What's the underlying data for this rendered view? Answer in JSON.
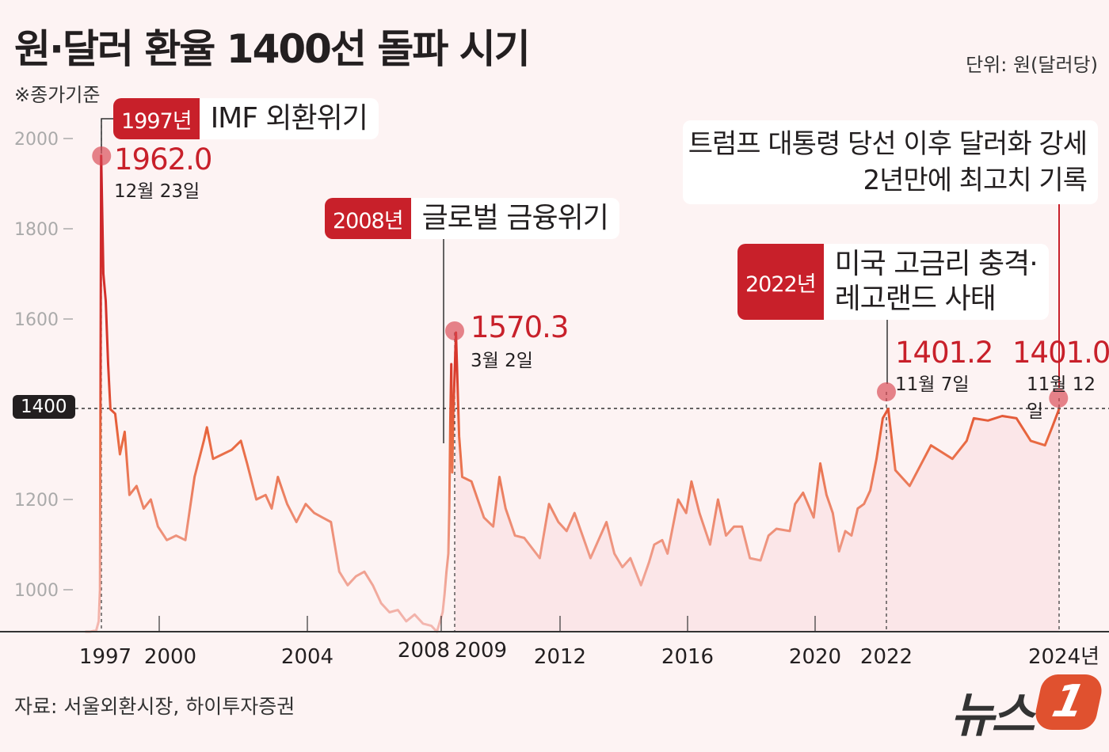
{
  "title": "원·달러 환율 1400선 돌파 시기",
  "unit": "단위: 원(달러당)",
  "note": "※종가기준",
  "source": "자료: 서울외환시장, 하이투자증권",
  "logo": {
    "text": "뉴스",
    "mark": "1"
  },
  "reference_line": {
    "value": 1400,
    "label": "1400"
  },
  "colors": {
    "accent": "#c8202a",
    "line_high": "#c8202a",
    "line_mid": "#e8673e",
    "line_low": "#f3b7b0",
    "background": "#fdf3f3",
    "fill": "#fbe6e8"
  },
  "annotations": [
    {
      "year": "1997년",
      "text": "IMF 외환위기",
      "value": "1962.0",
      "date": "12월 23일"
    },
    {
      "year": "2008년",
      "text": "글로벌 금융위기",
      "value": "1570.3",
      "date": "3월 2일"
    },
    {
      "year": "2022년",
      "text": "미국 고금리 충격·",
      "text2": "레고랜드 사태",
      "value": "1401.2",
      "date": "11월 7일"
    },
    {
      "text": "트럼프 대통령 당선 이후 달러화 강세",
      "text2": "2년만에 최고치 기록",
      "value": "1401.0",
      "date": "11월 12일"
    }
  ],
  "chart_data": {
    "type": "line",
    "title": "원·달러 환율 1400선 돌파 시기",
    "ylabel": "단위: 원(달러당)",
    "ylim": [
      900,
      2050
    ],
    "yticks": [
      "2000",
      "1800",
      "1600",
      "1400",
      "1200",
      "1000"
    ],
    "xticks": [
      "1997",
      "2000",
      "2004",
      "2008",
      "2009",
      "2012",
      "2016",
      "2020",
      "2022",
      "2024년"
    ],
    "grid": false,
    "highlights": [
      {
        "date": "1997-12-23",
        "value": 1962.0
      },
      {
        "date": "2009-03-02",
        "value": 1570.3
      },
      {
        "date": "2022-11-07",
        "value": 1401.2
      },
      {
        "date": "2024-11-12",
        "value": 1401.0
      }
    ],
    "series": [
      {
        "points": [
          [
            "1996-11",
            900
          ],
          [
            "1997-03",
            905
          ],
          [
            "1997-08",
            910
          ],
          [
            "1997-10",
            930
          ],
          [
            "1997-11",
            1000
          ],
          [
            "1997-12",
            1962
          ],
          [
            "1998-01",
            1700
          ],
          [
            "1998-02",
            1640
          ],
          [
            "1998-03",
            1500
          ],
          [
            "1998-04",
            1400
          ],
          [
            "1998-06",
            1390
          ],
          [
            "1998-08",
            1300
          ],
          [
            "1998-10",
            1350
          ],
          [
            "1998-12",
            1210
          ],
          [
            "1999-03",
            1230
          ],
          [
            "1999-06",
            1180
          ],
          [
            "1999-09",
            1200
          ],
          [
            "1999-12",
            1140
          ],
          [
            "2000-03",
            1110
          ],
          [
            "2000-06",
            1120
          ],
          [
            "2000-09",
            1110
          ],
          [
            "2000-12",
            1250
          ],
          [
            "2001-03",
            1330
          ],
          [
            "2001-04",
            1360
          ],
          [
            "2001-06",
            1290
          ],
          [
            "2001-09",
            1300
          ],
          [
            "2001-12",
            1310
          ],
          [
            "2002-03",
            1330
          ],
          [
            "2002-05",
            1280
          ],
          [
            "2002-08",
            1200
          ],
          [
            "2002-11",
            1210
          ],
          [
            "2003-01",
            1180
          ],
          [
            "2003-03",
            1250
          ],
          [
            "2003-06",
            1190
          ],
          [
            "2003-09",
            1150
          ],
          [
            "2003-12",
            1190
          ],
          [
            "2004-03",
            1170
          ],
          [
            "2004-06",
            1160
          ],
          [
            "2004-09",
            1150
          ],
          [
            "2004-12",
            1040
          ],
          [
            "2005-03",
            1010
          ],
          [
            "2005-06",
            1030
          ],
          [
            "2005-09",
            1040
          ],
          [
            "2005-12",
            1010
          ],
          [
            "2006-03",
            970
          ],
          [
            "2006-06",
            950
          ],
          [
            "2006-09",
            955
          ],
          [
            "2006-12",
            930
          ],
          [
            "2007-03",
            945
          ],
          [
            "2007-06",
            925
          ],
          [
            "2007-09",
            920
          ],
          [
            "2007-11",
            905
          ],
          [
            "2008-02",
            950
          ],
          [
            "2008-04",
            990
          ],
          [
            "2008-06",
            1040
          ],
          [
            "2008-08",
            1080
          ],
          [
            "2008-09",
            1180
          ],
          [
            "2008-10",
            1380
          ],
          [
            "2008-11",
            1500
          ],
          [
            "2008-12",
            1260
          ],
          [
            "2009-01",
            1380
          ],
          [
            "2009-03",
            1570
          ],
          [
            "2009-04",
            1340
          ],
          [
            "2009-05",
            1250
          ],
          [
            "2009-08",
            1240
          ],
          [
            "2009-12",
            1160
          ],
          [
            "2010-03",
            1140
          ],
          [
            "2010-05",
            1250
          ],
          [
            "2010-07",
            1180
          ],
          [
            "2010-10",
            1120
          ],
          [
            "2011-01",
            1115
          ],
          [
            "2011-06",
            1070
          ],
          [
            "2011-09",
            1190
          ],
          [
            "2011-12",
            1150
          ],
          [
            "2012-03",
            1130
          ],
          [
            "2012-06",
            1170
          ],
          [
            "2012-09",
            1120
          ],
          [
            "2012-12",
            1070
          ],
          [
            "2013-03",
            1110
          ],
          [
            "2013-06",
            1150
          ],
          [
            "2013-09",
            1080
          ],
          [
            "2013-12",
            1050
          ],
          [
            "2014-03",
            1070
          ],
          [
            "2014-07",
            1010
          ],
          [
            "2014-10",
            1060
          ],
          [
            "2014-12",
            1100
          ],
          [
            "2015-03",
            1110
          ],
          [
            "2015-05",
            1080
          ],
          [
            "2015-09",
            1200
          ],
          [
            "2015-12",
            1170
          ],
          [
            "2016-02",
            1240
          ],
          [
            "2016-05",
            1170
          ],
          [
            "2016-09",
            1100
          ],
          [
            "2016-12",
            1200
          ],
          [
            "2017-03",
            1120
          ],
          [
            "2017-06",
            1140
          ],
          [
            "2017-09",
            1140
          ],
          [
            "2017-12",
            1070
          ],
          [
            "2018-04",
            1065
          ],
          [
            "2018-07",
            1120
          ],
          [
            "2018-10",
            1135
          ],
          [
            "2019-03",
            1130
          ],
          [
            "2019-05",
            1190
          ],
          [
            "2019-08",
            1215
          ],
          [
            "2019-12",
            1160
          ],
          [
            "2020-03",
            1280
          ],
          [
            "2020-06",
            1210
          ],
          [
            "2020-09",
            1170
          ],
          [
            "2020-12",
            1085
          ],
          [
            "2021-03",
            1130
          ],
          [
            "2021-06",
            1120
          ],
          [
            "2021-09",
            1180
          ],
          [
            "2021-12",
            1190
          ],
          [
            "2022-03",
            1220
          ],
          [
            "2022-06",
            1290
          ],
          [
            "2022-09",
            1380
          ],
          [
            "2022-11",
            1401
          ],
          [
            "2022-12",
            1265
          ],
          [
            "2023-02",
            1230
          ],
          [
            "2023-05",
            1320
          ],
          [
            "2023-08",
            1290
          ],
          [
            "2023-10",
            1330
          ],
          [
            "2023-11",
            1380
          ],
          [
            "2024-01",
            1375
          ],
          [
            "2024-03",
            1385
          ],
          [
            "2024-05",
            1380
          ],
          [
            "2024-07",
            1330
          ],
          [
            "2024-09",
            1320
          ],
          [
            "2024-10",
            1360
          ],
          [
            "2024-11",
            1401
          ]
        ]
      }
    ]
  }
}
